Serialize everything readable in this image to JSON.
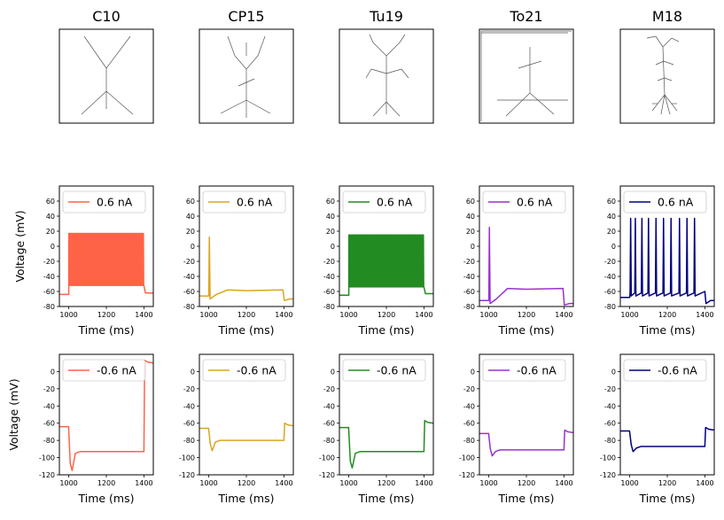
{
  "figure": {
    "columns": [
      {
        "title": "C10",
        "color": "#ff6347"
      },
      {
        "title": "CP15",
        "color": "#daa520"
      },
      {
        "title": "Tu19",
        "color": "#228b22"
      },
      {
        "title": "To21",
        "color": "#9932cc"
      },
      {
        "title": "M18",
        "color": "#000080"
      }
    ]
  },
  "chart_data": [
    {
      "type": "line",
      "row": "positive current",
      "columns": [
        "C10",
        "CP15",
        "Tu19",
        "To21",
        "M18"
      ],
      "xlabel": "Time (ms)",
      "ylabel": "Voltage (mV)",
      "xlim": [
        950,
        1450
      ],
      "ylim": [
        -80,
        80
      ],
      "xticks": [
        1000,
        1200,
        1400
      ],
      "yticks": [
        -80,
        -60,
        -40,
        -20,
        0,
        20,
        40,
        60
      ],
      "legend_placement": "top-left",
      "series": [
        {
          "name": "0.6 nA",
          "column": "C10",
          "resting_mV": -64,
          "spike_peak_mV": 17,
          "spike_trough_mV": -52,
          "stim_start_ms": 1000,
          "stim_end_ms": 1400,
          "behavior": "dense tonic firing"
        },
        {
          "name": "0.6 nA",
          "column": "CP15",
          "resting_mV": -66,
          "spike_peak_mV": 12,
          "plateau_mV": -59,
          "stim_start_ms": 1000,
          "stim_end_ms": 1400,
          "behavior": "single spike"
        },
        {
          "name": "0.6 nA",
          "column": "Tu19",
          "resting_mV": -65,
          "spike_peak_mV": 15,
          "spike_trough_mV": -54,
          "stim_start_ms": 1000,
          "stim_end_ms": 1400,
          "behavior": "dense tonic firing"
        },
        {
          "name": "0.6 nA",
          "column": "To21",
          "resting_mV": -72,
          "spike_peak_mV": 25,
          "plateau_mV": -57,
          "stim_start_ms": 1000,
          "stim_end_ms": 1400,
          "behavior": "single spike"
        },
        {
          "name": "0.6 nA",
          "column": "M18",
          "resting_mV": -68,
          "spike_peak_mV": 37,
          "spike_times_ms": [
            1005,
            1030,
            1065,
            1100,
            1140,
            1180,
            1220,
            1265,
            1305,
            1345
          ],
          "stim_start_ms": 1000,
          "stim_end_ms": 1400,
          "behavior": "regular firing"
        }
      ]
    },
    {
      "type": "line",
      "row": "negative current",
      "columns": [
        "C10",
        "CP15",
        "Tu19",
        "To21",
        "M18"
      ],
      "xlabel": "Time (ms)",
      "ylabel": "Voltage (mV)",
      "xlim": [
        950,
        1450
      ],
      "ylim": [
        -120,
        20
      ],
      "xticks": [
        1000,
        1200,
        1400
      ],
      "yticks": [
        -120,
        -100,
        -80,
        -60,
        -40,
        -20,
        0
      ],
      "legend_placement": "top-left",
      "series": [
        {
          "name": "-0.6 nA",
          "column": "C10",
          "resting_mV": -64,
          "trough_mV": -115,
          "steady_mV": -93,
          "rebound_peak_mV": 13,
          "stim_start_ms": 1000,
          "stim_end_ms": 1400
        },
        {
          "name": "-0.6 nA",
          "column": "CP15",
          "resting_mV": -66,
          "trough_mV": -92,
          "steady_mV": -80,
          "rebound_peak_mV": -60,
          "stim_start_ms": 1000,
          "stim_end_ms": 1400
        },
        {
          "name": "-0.6 nA",
          "column": "Tu19",
          "resting_mV": -65,
          "trough_mV": -112,
          "steady_mV": -93,
          "rebound_peak_mV": -57,
          "stim_start_ms": 1000,
          "stim_end_ms": 1400
        },
        {
          "name": "-0.6 nA",
          "column": "To21",
          "resting_mV": -72,
          "trough_mV": -98,
          "steady_mV": -91,
          "rebound_peak_mV": -68,
          "stim_start_ms": 1000,
          "stim_end_ms": 1400
        },
        {
          "name": "-0.6 nA",
          "column": "M18",
          "resting_mV": -69,
          "trough_mV": -93,
          "steady_mV": -87,
          "rebound_peak_mV": -65,
          "stim_start_ms": 1000,
          "stim_end_ms": 1400
        }
      ]
    }
  ]
}
